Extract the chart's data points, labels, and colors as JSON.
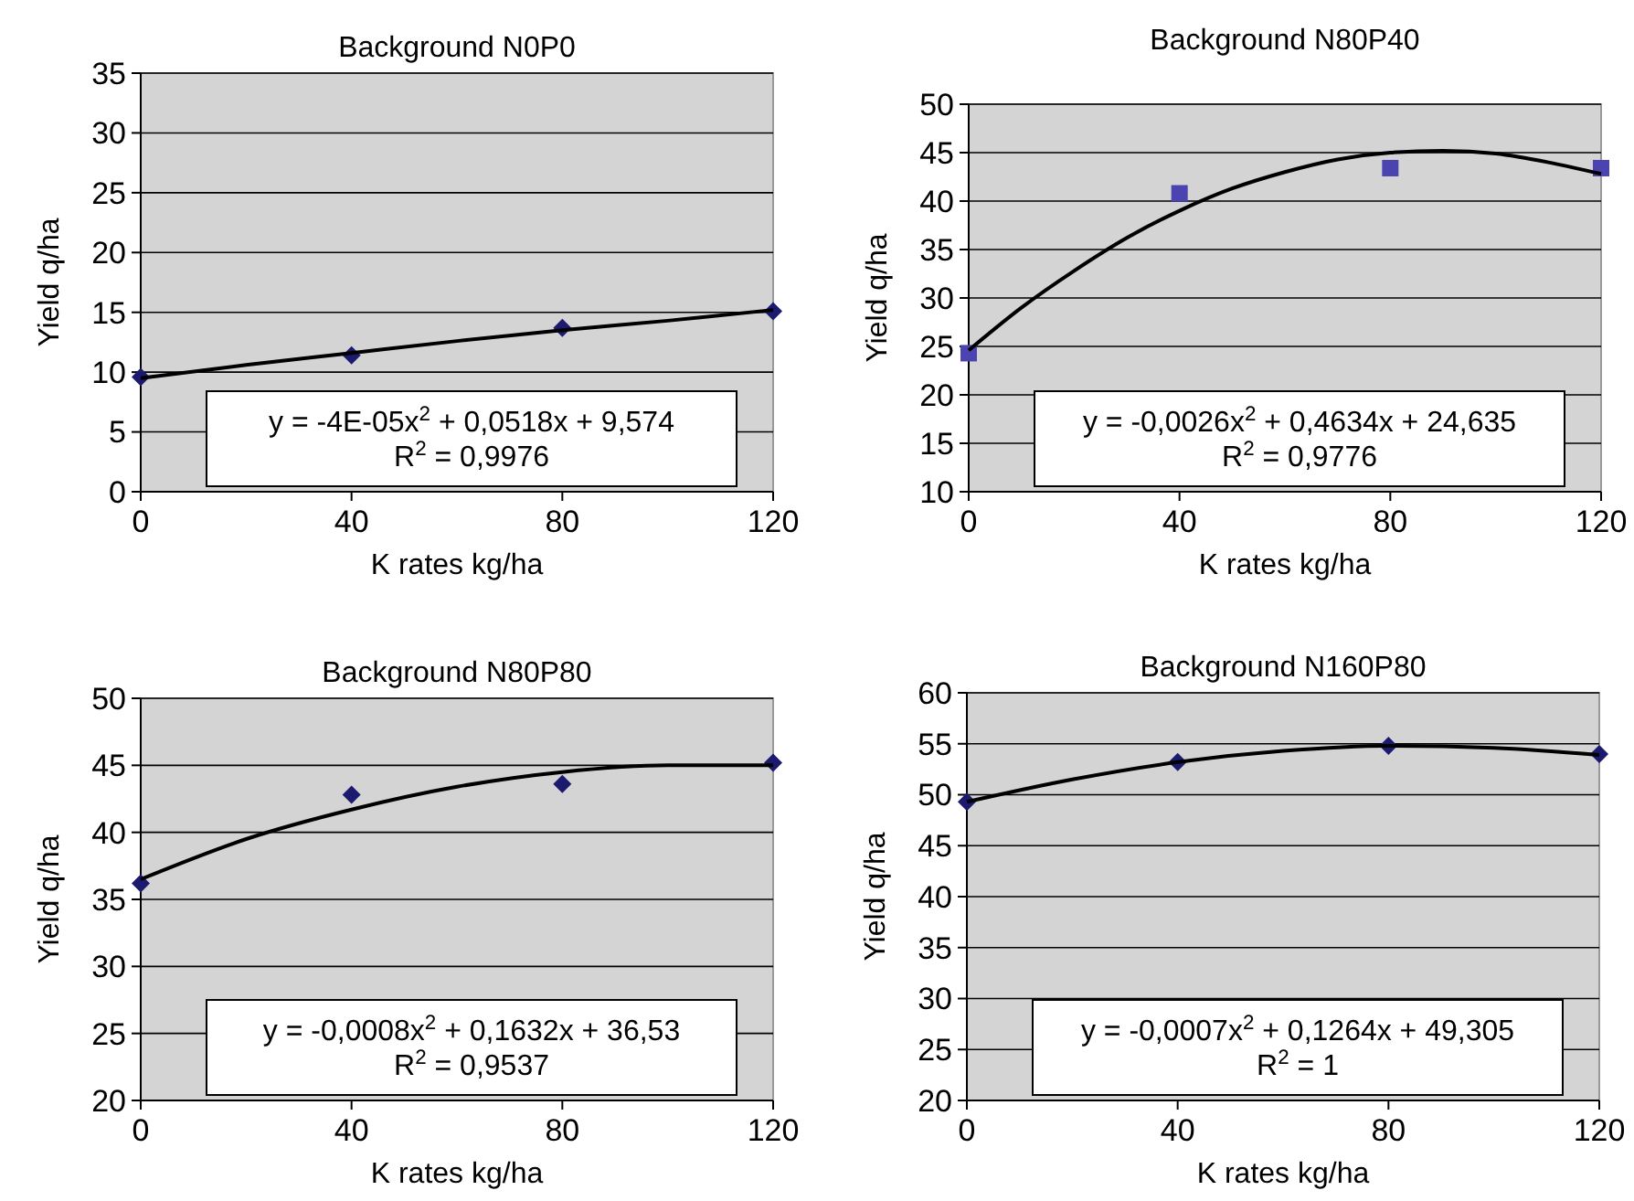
{
  "chart_data": [
    {
      "type": "scatter",
      "title": "Background N0P0",
      "xlabel": "K rates kg/ha",
      "ylabel": "Yield q/ha",
      "xlim": [
        0,
        120
      ],
      "xticks": [
        0,
        40,
        80,
        120
      ],
      "ylim": [
        0,
        35
      ],
      "yticks": [
        0,
        5,
        10,
        15,
        20,
        25,
        30,
        35
      ],
      "grid": "y",
      "annotations": [
        "y = -4E-05x$^{2}$ + 0,0518x + 9,574",
        "R$^{2}$ = 0,9976"
      ],
      "series": [
        {
          "type": "scatter",
          "marker": "diamond",
          "color": "#1c1a6e",
          "x": [
            0,
            40,
            80,
            120
          ],
          "values": [
            9.6,
            11.4,
            13.7,
            15.1
          ]
        },
        {
          "type": "line",
          "marker": "none",
          "color": "#000000",
          "x": [
            0,
            20,
            40,
            60,
            80,
            100,
            120
          ],
          "values": [
            9.5,
            10.6,
            11.6,
            12.6,
            13.5,
            14.3,
            15.2
          ]
        }
      ]
    },
    {
      "type": "scatter",
      "title": "Background N80P40",
      "xlabel": "K rates kg/ha",
      "ylabel": "Yield q/ha",
      "xlim": [
        0,
        120
      ],
      "xticks": [
        0,
        40,
        80,
        120
      ],
      "ylim": [
        10,
        50
      ],
      "yticks": [
        10,
        15,
        20,
        25,
        30,
        35,
        40,
        45,
        50
      ],
      "grid": "y",
      "annotations": [
        "y = -0,0026x$^{2}$ + 0,4634x + 24,635",
        "R$^{2}$ = 0,9776"
      ],
      "series": [
        {
          "type": "scatter",
          "marker": "square",
          "color": "#4b43b0",
          "x": [
            0,
            40,
            80,
            120
          ],
          "values": [
            24.3,
            40.8,
            43.4,
            43.4
          ]
        },
        {
          "type": "line",
          "marker": "none",
          "color": "#000000",
          "x": [
            0,
            10,
            20,
            30,
            40,
            50,
            60,
            70,
            80,
            90,
            100,
            110,
            120
          ],
          "values": [
            24.6,
            29.0,
            32.8,
            36.2,
            39.0,
            41.3,
            43.0,
            44.3,
            45.0,
            45.2,
            44.9,
            44.0,
            42.8
          ]
        }
      ]
    },
    {
      "type": "scatter",
      "title": "Background N80P80",
      "xlabel": "K rates kg/ha",
      "ylabel": "Yield q/ha",
      "xlim": [
        0,
        120
      ],
      "xticks": [
        0,
        40,
        80,
        120
      ],
      "ylim": [
        20,
        50
      ],
      "yticks": [
        20,
        25,
        30,
        35,
        40,
        45,
        50
      ],
      "grid": "y",
      "annotations": [
        "y = -0,0008x$^{2}$ + 0,1632x + 36,53",
        "R$^{2}$ = 0,9537"
      ],
      "series": [
        {
          "type": "scatter",
          "marker": "diamond",
          "color": "#1c1a6e",
          "x": [
            0,
            40,
            80,
            120
          ],
          "values": [
            36.2,
            42.8,
            43.6,
            45.2
          ]
        },
        {
          "type": "line",
          "marker": "none",
          "color": "#000000",
          "x": [
            0,
            20,
            40,
            60,
            80,
            100,
            120
          ],
          "values": [
            36.5,
            39.5,
            41.7,
            43.4,
            44.5,
            45.0,
            45.0
          ]
        }
      ]
    },
    {
      "type": "scatter",
      "title": "Background N160P80",
      "xlabel": "K rates kg/ha",
      "ylabel": "Yield q/ha",
      "xlim": [
        0,
        120
      ],
      "xticks": [
        0,
        40,
        80,
        120
      ],
      "ylim": [
        20,
        60
      ],
      "yticks": [
        20,
        25,
        30,
        35,
        40,
        45,
        50,
        55,
        60
      ],
      "grid": "y",
      "annotations": [
        "y = -0,0007x$^{2}$ + 0,1264x + 49,305",
        "R$^{2}$ = 1"
      ],
      "series": [
        {
          "type": "scatter",
          "marker": "diamond",
          "color": "#1c1a6e",
          "x": [
            0,
            40,
            80,
            120
          ],
          "values": [
            49.3,
            53.2,
            54.8,
            54.0
          ]
        },
        {
          "type": "line",
          "marker": "none",
          "color": "#000000",
          "x": [
            0,
            20,
            40,
            60,
            80,
            100,
            120
          ],
          "values": [
            49.3,
            51.5,
            53.2,
            54.3,
            54.8,
            54.6,
            53.9
          ]
        }
      ]
    }
  ]
}
